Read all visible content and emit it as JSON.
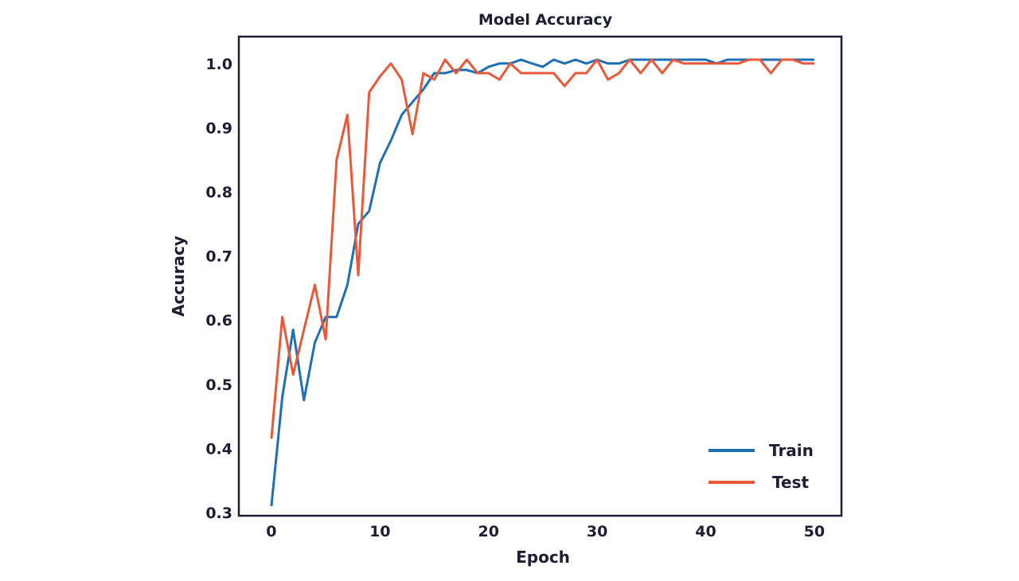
{
  "chart_data": {
    "type": "line",
    "title": "Model Accuracy",
    "xlabel": "Epoch",
    "ylabel": "Accuracy",
    "xlim": [
      -3,
      52.5
    ],
    "ylim": [
      0.295,
      1.042
    ],
    "xticks": [
      0,
      10,
      20,
      30,
      40,
      50
    ],
    "yticks": [
      0.3,
      0.4,
      0.5,
      0.6,
      0.7,
      0.8,
      0.9,
      1.0
    ],
    "ytick_labels": [
      "0.3",
      "0.4",
      "0.5",
      "0.6",
      "0.7",
      "0.8",
      "0.9",
      "1.0"
    ],
    "grid": false,
    "legend_position": "bottom-right",
    "x": [
      0,
      1,
      2,
      3,
      4,
      5,
      6,
      7,
      8,
      9,
      10,
      11,
      12,
      13,
      14,
      15,
      16,
      17,
      18,
      19,
      20,
      21,
      22,
      23,
      24,
      25,
      26,
      27,
      28,
      29,
      30,
      31,
      32,
      33,
      34,
      35,
      36,
      37,
      38,
      39,
      40,
      41,
      42,
      43,
      44,
      45,
      46,
      47,
      48,
      49,
      50
    ],
    "series": [
      {
        "name": "Train",
        "color": "#1f6fb5",
        "values": [
          0.31,
          0.48,
          0.585,
          0.475,
          0.565,
          0.605,
          0.605,
          0.655,
          0.75,
          0.77,
          0.845,
          0.88,
          0.92,
          0.94,
          0.96,
          0.985,
          0.985,
          0.99,
          0.99,
          0.985,
          0.995,
          1.0,
          1.0,
          1.006,
          1.0,
          0.995,
          1.006,
          1.0,
          1.006,
          1.0,
          1.006,
          1.0,
          1.0,
          1.006,
          1.006,
          1.006,
          1.006,
          1.006,
          1.006,
          1.006,
          1.006,
          1.0,
          1.006,
          1.006,
          1.006,
          1.006,
          1.006,
          1.006,
          1.006,
          1.006,
          1.006
        ]
      },
      {
        "name": "Test",
        "color": "#e8593a",
        "values": [
          0.415,
          0.605,
          0.515,
          0.585,
          0.655,
          0.57,
          0.85,
          0.92,
          0.67,
          0.955,
          0.98,
          1.0,
          0.975,
          0.89,
          0.985,
          0.975,
          1.006,
          0.985,
          1.006,
          0.985,
          0.985,
          0.975,
          1.0,
          0.985,
          0.985,
          0.985,
          0.985,
          0.965,
          0.985,
          0.985,
          1.006,
          0.975,
          0.985,
          1.006,
          0.985,
          1.006,
          0.985,
          1.006,
          1.0,
          1.0,
          1.0,
          1.0,
          1.0,
          1.0,
          1.006,
          1.006,
          0.985,
          1.006,
          1.006,
          1.0,
          1.0
        ]
      }
    ]
  }
}
